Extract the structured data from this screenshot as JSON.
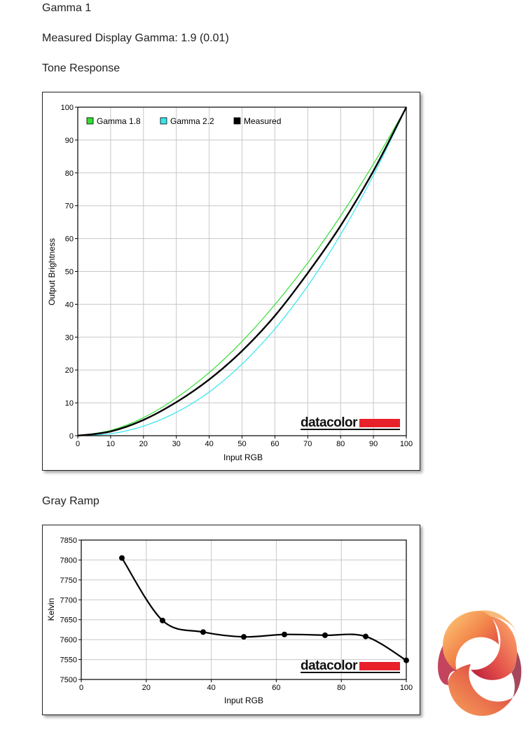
{
  "heading": "Gamma 1",
  "measured_gamma": "Measured Display Gamma: 1.9 (0.01)",
  "tone_title": "Tone Response",
  "gray_title": "Gray Ramp",
  "watermark": "datacolor",
  "colors": {
    "gamma18": "#33dd33",
    "gamma22": "#33e6ee",
    "measured": "#000000",
    "grid": "#c8c8c8",
    "brand_red": "#e8202a"
  },
  "chart_data": [
    {
      "type": "line",
      "xlabel": "Input RGB",
      "ylabel": "Output Brightness",
      "xlim": [
        0,
        100
      ],
      "ylim": [
        0,
        100
      ],
      "xticks": [
        0,
        10,
        20,
        30,
        40,
        50,
        60,
        70,
        80,
        90,
        100
      ],
      "yticks": [
        0,
        10,
        20,
        30,
        40,
        50,
        60,
        70,
        80,
        90,
        100
      ],
      "grid": true,
      "legend_position": "top-left",
      "x": [
        0,
        10,
        20,
        30,
        40,
        50,
        60,
        70,
        80,
        90,
        100
      ],
      "series": [
        {
          "name": "Gamma 1.8",
          "color": "#33dd33",
          "values": [
            0,
            1.6,
            5.5,
            11.5,
            19.2,
            28.7,
            39.9,
            52.6,
            66.9,
            82.7,
            100
          ]
        },
        {
          "name": "Gamma 2.2",
          "color": "#33e6ee",
          "values": [
            0,
            0.6,
            2.9,
            7.1,
            13.3,
            21.8,
            32.5,
            45.6,
            61.2,
            79.3,
            100
          ]
        },
        {
          "name": "Measured",
          "color": "#000000",
          "values": [
            0,
            1.3,
            4.8,
            10.2,
            17.1,
            25.8,
            36.5,
            49.5,
            63.9,
            80.6,
            100
          ]
        }
      ]
    },
    {
      "type": "line",
      "xlabel": "Input RGB",
      "ylabel": "Kelvin",
      "xlim": [
        0,
        100
      ],
      "ylim": [
        7500,
        7850
      ],
      "xticks": [
        0,
        20,
        40,
        60,
        80,
        100
      ],
      "yticks": [
        7500,
        7550,
        7600,
        7650,
        7700,
        7750,
        7800,
        7850
      ],
      "grid": true,
      "x": [
        12.5,
        25,
        37.5,
        50,
        62.5,
        75,
        87.5,
        100
      ],
      "values": [
        7805,
        7648,
        7619,
        7607,
        7613,
        7611,
        7608,
        7548
      ]
    }
  ]
}
